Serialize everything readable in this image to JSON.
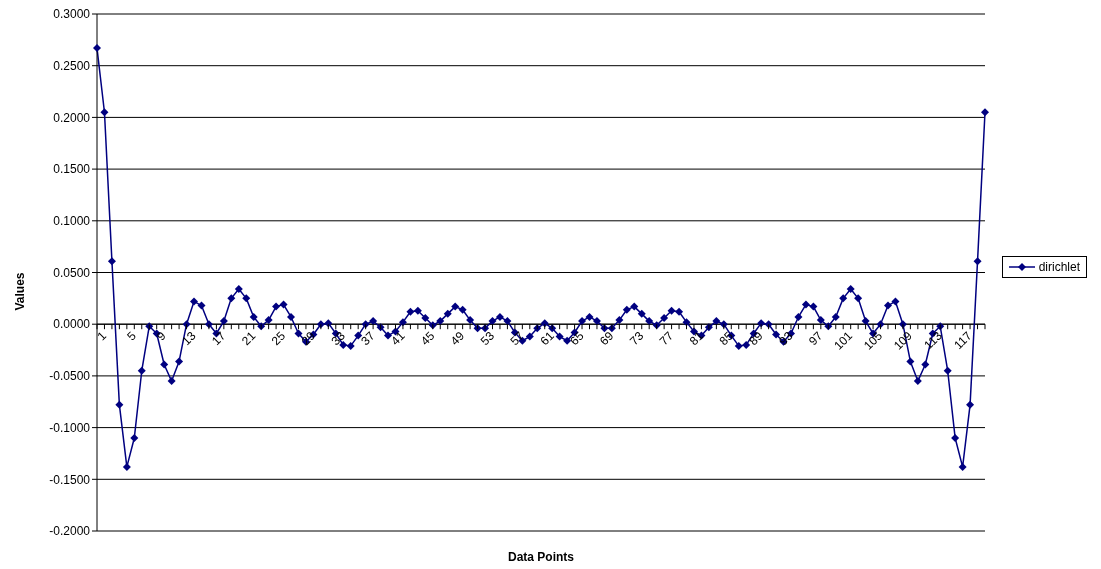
{
  "chart_data": {
    "type": "line",
    "xlabel": "Data Points",
    "ylabel": "Values",
    "categories": [
      "1",
      null,
      null,
      null,
      "5",
      null,
      null,
      null,
      "9",
      null,
      null,
      null,
      "13",
      null,
      null,
      null,
      "17",
      null,
      null,
      null,
      "21",
      null,
      null,
      null,
      "25",
      null,
      null,
      null,
      "29",
      null,
      null,
      null,
      "33",
      null,
      null,
      null,
      "37",
      null,
      null,
      null,
      "41",
      null,
      null,
      null,
      "45",
      null,
      null,
      null,
      "49",
      null,
      null,
      null,
      "53",
      null,
      null,
      null,
      "57",
      null,
      null,
      null,
      "61",
      null,
      null,
      null,
      "65",
      null,
      null,
      null,
      "69",
      null,
      null,
      null,
      "73",
      null,
      null,
      null,
      "77",
      null,
      null,
      null,
      "81",
      null,
      null,
      null,
      "85",
      null,
      null,
      null,
      "89",
      null,
      null,
      null,
      "93",
      null,
      null,
      null,
      "97",
      null,
      null,
      null,
      "101",
      null,
      null,
      null,
      "105",
      null,
      null,
      null,
      "109",
      null,
      null,
      null,
      "113",
      null,
      null,
      null,
      "117",
      null,
      null,
      null
    ],
    "series": [
      {
        "name": "dirichlet",
        "color": "#000080",
        "values": [
          0.267,
          0.205,
          0.061,
          -0.078,
          -0.138,
          -0.11,
          -0.045,
          -0.002,
          -0.009,
          -0.039,
          -0.055,
          -0.036,
          0.0,
          0.022,
          0.018,
          0.0,
          -0.009,
          0.003,
          0.025,
          0.034,
          0.025,
          0.007,
          -0.002,
          0.004,
          0.017,
          0.019,
          0.007,
          -0.009,
          -0.017,
          -0.01,
          0.0,
          0.001,
          -0.009,
          -0.02,
          -0.021,
          -0.011,
          0.0,
          0.003,
          -0.003,
          -0.011,
          -0.007,
          0.002,
          0.012,
          0.013,
          0.006,
          -0.001,
          0.003,
          0.01,
          0.017,
          0.014,
          0.004,
          -0.004,
          -0.004,
          0.003,
          0.007,
          0.003,
          -0.008,
          -0.016,
          -0.012,
          -0.004,
          0.001,
          -0.004,
          -0.012,
          -0.016,
          -0.008,
          0.003,
          0.007,
          0.003,
          -0.004,
          -0.004,
          0.004,
          0.014,
          0.017,
          0.01,
          0.003,
          -0.001,
          0.006,
          0.013,
          0.012,
          0.002,
          -0.007,
          -0.011,
          -0.003,
          0.003,
          0.0,
          -0.011,
          -0.021,
          -0.02,
          -0.009,
          0.001,
          0.0,
          -0.01,
          -0.017,
          -0.009,
          0.007,
          0.019,
          0.017,
          0.004,
          -0.002,
          0.007,
          0.025,
          0.034,
          0.025,
          0.003,
          -0.009,
          0.0,
          0.018,
          0.022,
          0.0,
          -0.036,
          -0.055,
          -0.039,
          -0.009,
          -0.002,
          -0.045,
          -0.11,
          -0.138,
          -0.078,
          0.061,
          0.205
        ]
      }
    ],
    "ylim": [
      -0.2,
      0.3
    ],
    "yticks": [
      {
        "value": -0.2,
        "label": "-0.2000"
      },
      {
        "value": -0.15,
        "label": "-0.1500"
      },
      {
        "value": -0.1,
        "label": "-0.1000"
      },
      {
        "value": -0.05,
        "label": "-0.0500"
      },
      {
        "value": 0,
        "label": "0.0000"
      },
      {
        "value": 0.05,
        "label": "0.0500"
      },
      {
        "value": 0.1,
        "label": "0.1000"
      },
      {
        "value": 0.15,
        "label": "0.1500"
      },
      {
        "value": 0.2,
        "label": "0.2000"
      },
      {
        "value": 0.25,
        "label": "0.2500"
      },
      {
        "value": 0.3,
        "label": "0.3000"
      }
    ],
    "grid": "y",
    "legend": "right",
    "marker": "diamond",
    "line_style": "solid"
  }
}
